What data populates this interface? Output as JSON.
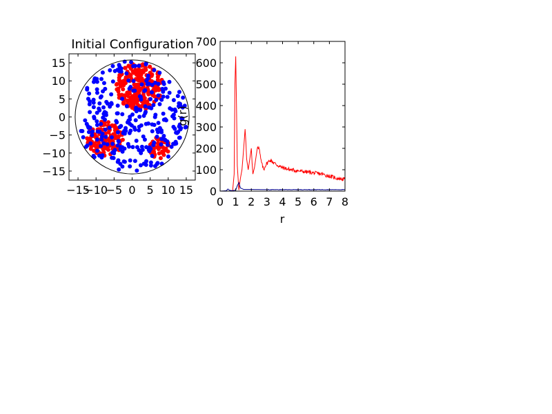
{
  "chart_data": [
    {
      "type": "scatter",
      "title": "Initial Configuration",
      "xlim": [
        -17.5,
        17.5
      ],
      "ylim": [
        -17.5,
        17.5
      ],
      "xticks": [
        "−15",
        "−10",
        "−5",
        "0",
        "5",
        "10",
        "15"
      ],
      "yticks": [
        "15",
        "10",
        "5",
        "0",
        "−5",
        "−10",
        "−15"
      ],
      "boundary_circle_radius": 15.8,
      "grid": false,
      "colors": {
        "cluster": "#ff0000",
        "free": "#0000ff"
      },
      "clusters": [
        {
          "color": "red",
          "center": [
            2.0,
            8.5
          ],
          "radius": 6.5,
          "count": 260
        },
        {
          "color": "red",
          "center": [
            -7.5,
            -6.0
          ],
          "radius": 5.0,
          "count": 140
        },
        {
          "color": "red",
          "center": [
            7.5,
            -8.5
          ],
          "radius": 3.0,
          "count": 45
        }
      ],
      "free_particles": {
        "color": "blue",
        "count": 300,
        "radius": 15.5
      }
    },
    {
      "type": "line",
      "xlabel": "r",
      "ylabel": "g(r)",
      "xlim": [
        0,
        8
      ],
      "ylim": [
        0,
        700
      ],
      "xticks": [
        "0",
        "1",
        "2",
        "3",
        "4",
        "5",
        "6",
        "7",
        "8"
      ],
      "yticks": [
        "0",
        "100",
        "200",
        "300",
        "400",
        "500",
        "600",
        "700"
      ],
      "grid": false,
      "series": [
        {
          "color": "#ff0000",
          "x": [
            0,
            0.8,
            0.9,
            0.95,
            1.0,
            1.05,
            1.1,
            1.2,
            1.3,
            1.4,
            1.5,
            1.6,
            1.65,
            1.7,
            1.8,
            1.9,
            2.0,
            2.05,
            2.1,
            2.2,
            2.3,
            2.4,
            2.5,
            2.6,
            2.7,
            2.8,
            2.9,
            3.0,
            3.2,
            3.5,
            3.8,
            4.0,
            4.5,
            5.0,
            5.5,
            6.0,
            6.5,
            7.0,
            7.5,
            8.0
          ],
          "y": [
            0,
            0,
            80,
            500,
            630,
            400,
            120,
            5,
            60,
            100,
            190,
            290,
            230,
            150,
            100,
            150,
            200,
            130,
            80,
            110,
            160,
            210,
            200,
            150,
            120,
            100,
            120,
            130,
            145,
            130,
            115,
            110,
            100,
            95,
            90,
            85,
            80,
            70,
            60,
            55
          ]
        },
        {
          "color": "#00008b",
          "x": [
            0,
            0.4,
            0.5,
            0.6,
            0.8,
            1.0,
            1.1,
            1.2,
            1.3,
            1.5,
            2.0,
            3.0,
            4.0,
            5.0,
            6.0,
            7.0,
            8.0
          ],
          "y": [
            0,
            2,
            10,
            4,
            2,
            5,
            25,
            40,
            15,
            8,
            8,
            7,
            7,
            7,
            7,
            7,
            7
          ]
        }
      ]
    }
  ]
}
